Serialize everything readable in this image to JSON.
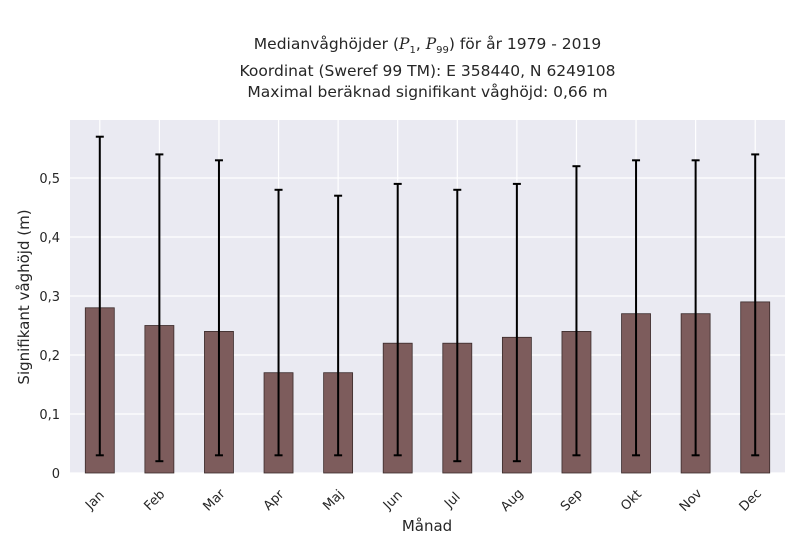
{
  "title": {
    "line1_prefix": "Medianvåghöjder (",
    "p1": "P",
    "p1_sub": "1",
    "comma": ", ",
    "p99": "P",
    "p99_sub": "99",
    "line1_suffix": ") för år 1979 - 2019",
    "line2": "Koordinat (Sweref 99 TM): E 358440, N 6249108",
    "line3": "Maximal beräknad signifikant våghöjd: 0,66 m"
  },
  "chart_data": {
    "type": "bar",
    "xlabel": "Månad",
    "ylabel": "Signifikant våghöjd (m)",
    "ylim": [
      0,
      0.6
    ],
    "yticks": [
      0,
      0.1,
      0.2,
      0.3,
      0.4,
      0.5
    ],
    "ytick_labels": [
      "0",
      "0,1",
      "0,2",
      "0,3",
      "0,4",
      "0,5"
    ],
    "grid": true,
    "categories": [
      "Jan",
      "Feb",
      "Mar",
      "Apr",
      "Maj",
      "Jun",
      "Jul",
      "Aug",
      "Sep",
      "Okt",
      "Nov",
      "Dec"
    ],
    "values": [
      0.28,
      0.25,
      0.24,
      0.17,
      0.17,
      0.22,
      0.22,
      0.23,
      0.24,
      0.27,
      0.27,
      0.29
    ],
    "p1": [
      0.03,
      0.02,
      0.03,
      0.03,
      0.03,
      0.03,
      0.02,
      0.02,
      0.03,
      0.03,
      0.03,
      0.03
    ],
    "p99": [
      0.57,
      0.54,
      0.53,
      0.48,
      0.47,
      0.49,
      0.48,
      0.49,
      0.52,
      0.53,
      0.53,
      0.54
    ],
    "colors": {
      "bar": "#7d5c5c",
      "bar_edge": "#3a2a2a",
      "errorbar": "#000000",
      "plot_bg": "#eaeaf2",
      "grid": "#ffffff"
    }
  }
}
